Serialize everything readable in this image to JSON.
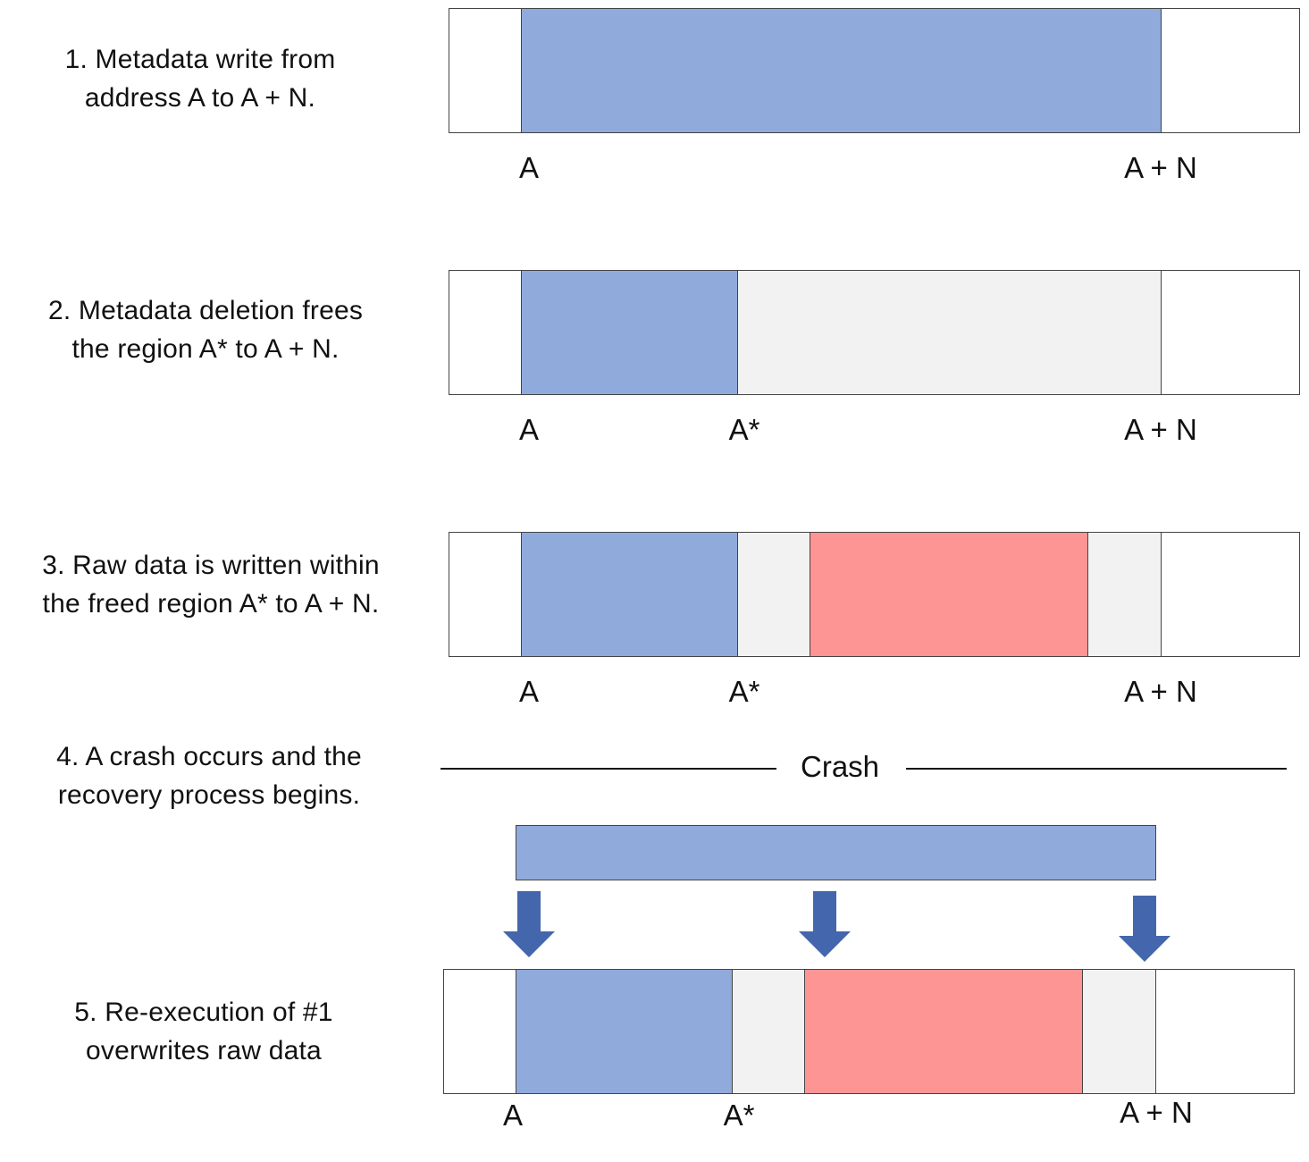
{
  "steps": [
    {
      "id": "1",
      "lines": [
        "1. Metadata write from",
        "address A to A + N."
      ]
    },
    {
      "id": "2",
      "lines": [
        "2. Metadata deletion frees",
        "the region A* to A + N."
      ]
    },
    {
      "id": "3",
      "lines": [
        "3. Raw data is written within",
        "the freed region A* to A + N."
      ]
    },
    {
      "id": "4",
      "lines": [
        "4. A crash occurs and the",
        "recovery process begins."
      ]
    },
    {
      "id": "5",
      "lines": [
        "5. Re-execution of #1",
        "overwrites raw data"
      ]
    }
  ],
  "addresses": {
    "a": "A",
    "a_star": "A*",
    "a_plus_n": "A + N"
  },
  "crash_label": "Crash",
  "colors": {
    "metadata": "#90aadb",
    "freed": "#f2f2f2",
    "raw_data": "#fe9595",
    "unused": "#ffffff",
    "arrow": "#4466ad",
    "border": "#444444"
  }
}
